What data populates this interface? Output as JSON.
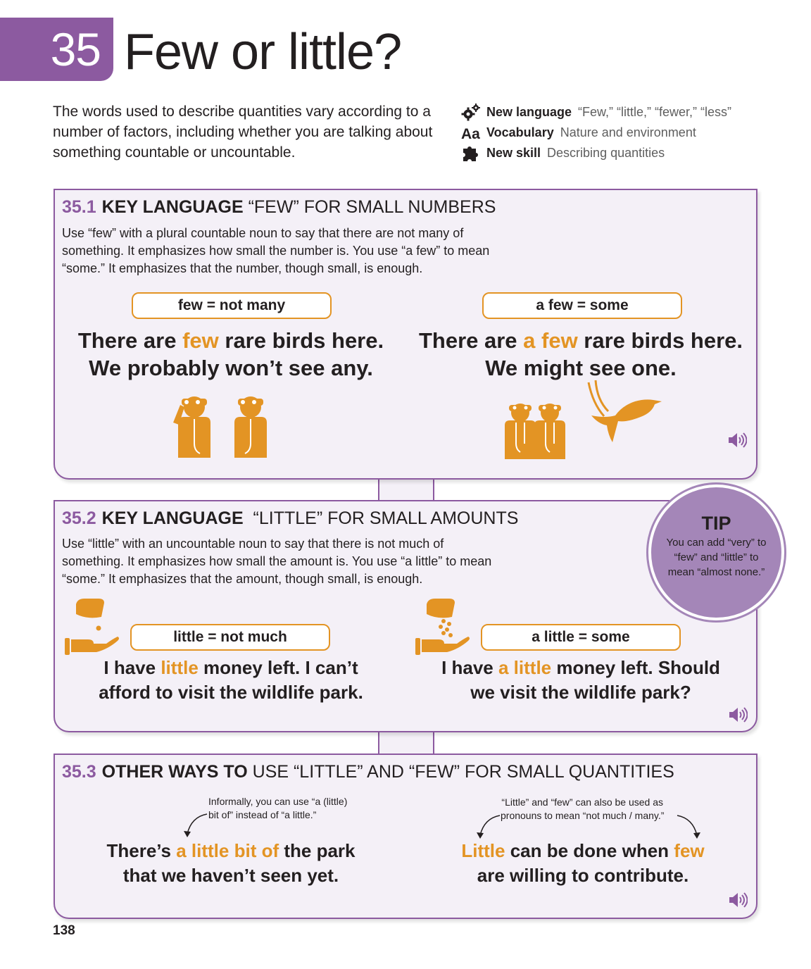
{
  "unit": {
    "number": "35",
    "title": "Few or little?"
  },
  "intro": "The words used to describe quantities vary according to a number of factors, including whether you are talking about something countable or uncountable.",
  "meta": [
    {
      "icon": "gears-icon",
      "key": "New language",
      "value": "“Few,” “little,” “fewer,” “less”"
    },
    {
      "icon": "aa-vocabulary-icon",
      "key": "Vocabulary",
      "value": "Nature and environment"
    },
    {
      "icon": "puzzle-piece-icon",
      "key": "New skill",
      "value": "Describing quantities"
    }
  ],
  "section1": {
    "number": "35.1",
    "key": "KEY LANGUAGE",
    "rest": "“FEW” FOR SMALL NUMBERS",
    "description": "Use “few” with a plural countable noun to say that there are not many of something. It emphasizes how small the number is. You use “a few” to mean “some.” It emphasizes that the number, though small, is enough.",
    "left_label": "few = not many",
    "left_line1_a": "There are ",
    "left_line1_hl": "few",
    "left_line1_b": " rare birds here.",
    "left_line2": "We probably won’t see any.",
    "right_label": "a few = some",
    "right_line1_a": "There are ",
    "right_line1_hl": "a few",
    "right_line1_b": " rare birds here.",
    "right_line2": "We might see one."
  },
  "section2": {
    "number": "35.2",
    "key": "KEY LANGUAGE",
    "rest": "“LITTLE” FOR SMALL AMOUNTS",
    "description": "Use “little” with an uncountable noun to say that there is not much of something. It emphasizes how small the amount is. You use “a little” to mean “some.” It emphasizes that the amount, though small, is enough.",
    "left_label": "little = not much",
    "left_line1_a": "I have ",
    "left_line1_hl": "little",
    "left_line1_b": " money left. I can’t",
    "left_line2": "afford to visit the wildlife park.",
    "right_label": "a little = some",
    "right_line1_a": "I have ",
    "right_line1_hl": "a little",
    "right_line1_b": " money left. Should",
    "right_line2": "we visit the wildlife park?"
  },
  "tip": {
    "title": "TIP",
    "text": "You can add “very” to “few” and “little” to mean “almost none.”"
  },
  "section3": {
    "number": "35.3",
    "key": "OTHER WAYS TO",
    "rest": "USE “LITTLE” AND “FEW” FOR SMALL QUANTITIES",
    "left_note_1": "Informally, you can use “a (little)",
    "left_note_2": "bit of” instead of “a little.”",
    "left_line1_a": "There’s ",
    "left_line1_hl": "a little bit of",
    "left_line1_b": " the park",
    "left_line2": "that we haven’t seen yet.",
    "right_note_1": "“Little” and “few” can also be used as",
    "right_note_2": "pronouns to mean “not much / many.”",
    "right_line1_hl1": "Little",
    "right_line1_mid": " can be done when ",
    "right_line1_hl2": "few",
    "right_line2": "are willing to contribute."
  },
  "page_number": "138",
  "colors": {
    "purple": "#8c5aa0",
    "orange": "#e39424",
    "panel_bg": "#f4f0f7",
    "tip_bg": "#a486b8"
  }
}
